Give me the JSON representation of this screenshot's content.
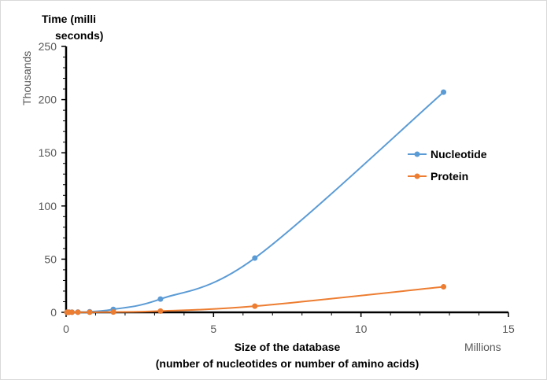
{
  "chart_data": {
    "type": "scatter",
    "title": "",
    "ylabel_lines": [
      "Time (milli",
      "seconds)"
    ],
    "xlabel_lines": [
      "Size of the database",
      "(number of nucleotides or number of amino acids)"
    ],
    "x_unit": "Millions",
    "y_unit": "Thousands",
    "xlim": [
      0,
      15
    ],
    "ylim": [
      0,
      250
    ],
    "x_ticks": [
      0,
      5,
      10,
      15
    ],
    "y_ticks": [
      0,
      50,
      100,
      150,
      200,
      250
    ],
    "grid": false,
    "smooth_lines": true,
    "legend_position": "right",
    "series": [
      {
        "name": "Nucleotide",
        "color": "#5b9bd5",
        "x": [
          0.025,
          0.05,
          0.1,
          0.2,
          0.4,
          0.8,
          1.6,
          3.2,
          6.4,
          12.8
        ],
        "y": [
          0.1,
          0.1,
          0.15,
          0.2,
          0.3,
          0.6,
          2.8,
          12.5,
          51,
          207
        ]
      },
      {
        "name": "Protein",
        "color": "#ed7d31",
        "x": [
          0.025,
          0.05,
          0.1,
          0.2,
          0.4,
          0.8,
          1.6,
          3.2,
          6.4,
          12.8
        ],
        "y": [
          0.05,
          0.05,
          0.05,
          0.05,
          0.08,
          0.1,
          0.3,
          1.2,
          5.8,
          24
        ]
      }
    ]
  }
}
